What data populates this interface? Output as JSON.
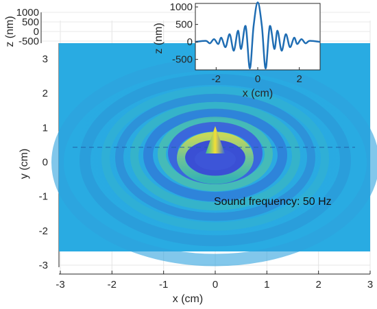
{
  "chart_data": [
    {
      "type": "heatmap",
      "subtype": "3d-surface",
      "xlabel": "x (cm)",
      "ylabel": "y (cm)",
      "zlabel": "z (nm)",
      "xlim": [
        -3,
        3
      ],
      "ylim": [
        -3,
        3
      ],
      "zlim": [
        -500,
        1000
      ],
      "x_ticks": [
        "-3",
        "-2",
        "-1",
        "0",
        "1",
        "2",
        "3"
      ],
      "y_ticks": [
        "-3",
        "-2",
        "-1",
        "0",
        "1",
        "2",
        "3"
      ],
      "z_ticks": [
        "-500",
        "0",
        "500",
        "1000"
      ],
      "grid": true,
      "colormap": "parula",
      "annotation": "Sound frequency: 50  Hz",
      "surface_center": {
        "x": 0,
        "y": 0
      },
      "peak_height_nm": 1100
    },
    {
      "type": "line",
      "xlabel": "x (cm)",
      "ylabel": "z (nm)",
      "xlim": [
        -3,
        3
      ],
      "ylim": [
        -800,
        1100
      ],
      "x_ticks": [
        "-2",
        "0",
        "2"
      ],
      "y_ticks": [
        "-500",
        "0",
        "500",
        "1000"
      ],
      "series": [
        {
          "color": "#1f6db3",
          "x": [
            -3.0,
            -2.5,
            -2.3,
            -2.1,
            -1.9,
            -1.75,
            -1.55,
            -1.35,
            -1.15,
            -0.95,
            -0.8,
            -0.58,
            -0.38,
            -0.2,
            0.0,
            0.2,
            0.38,
            0.58,
            0.8,
            0.95,
            1.15,
            1.35,
            1.55,
            1.75,
            1.9,
            2.1,
            2.3,
            2.5,
            3.0
          ],
          "y": [
            0,
            30,
            -40,
            80,
            -60,
            120,
            -150,
            220,
            -250,
            320,
            -200,
            450,
            -760,
            450,
            1130,
            450,
            -760,
            450,
            -200,
            320,
            -250,
            220,
            -150,
            120,
            -60,
            80,
            -40,
            30,
            0
          ]
        }
      ]
    }
  ],
  "colors": {
    "background": "#ffffff",
    "floor": "#29abe2",
    "line": "#1f6db3",
    "peak": "#f9e43c",
    "ring": "#82c58a",
    "trough": "#3f4fd6"
  }
}
